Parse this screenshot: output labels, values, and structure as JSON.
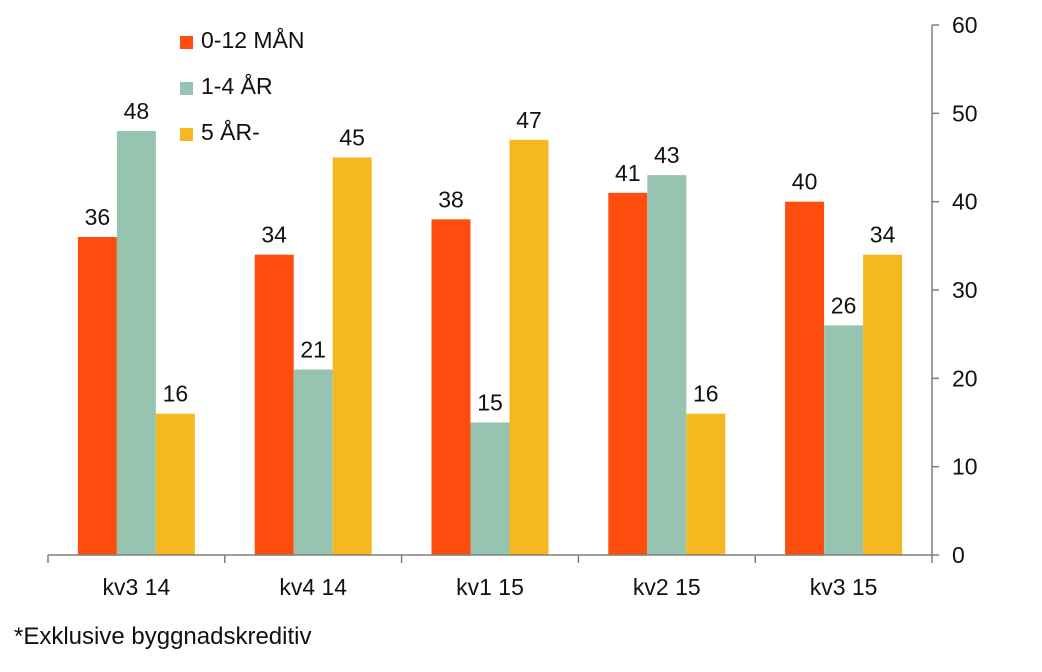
{
  "chart_data": {
    "type": "bar",
    "categories": [
      "kv3 14",
      "kv4 14",
      "kv1 15",
      "kv2 15",
      "kv3 15"
    ],
    "series": [
      {
        "name": "0-12 MÅN",
        "color": "#FF4D0F",
        "values": [
          36,
          34,
          38,
          41,
          40
        ]
      },
      {
        "name": "1-4 ÅR",
        "color": "#97C4B1",
        "values": [
          48,
          21,
          15,
          43,
          26
        ]
      },
      {
        "name": "5 ÅR-",
        "color": "#F5B820",
        "values": [
          16,
          45,
          47,
          16,
          34
        ]
      }
    ],
    "data_labels": [
      [
        "36",
        "34",
        "38",
        "41",
        "40"
      ],
      [
        "48",
        "21",
        "15",
        "43",
        "26"
      ],
      [
        "16",
        "45",
        "47",
        "16",
        "34"
      ]
    ],
    "y_ticks": [
      "0",
      "10",
      "20",
      "30",
      "40",
      "50",
      "60"
    ],
    "ylim": [
      0,
      60
    ],
    "y_axis_side": "right",
    "grid": false,
    "legend_position": "top-left"
  },
  "footnote": "*Exklusive byggnadskreditiv"
}
